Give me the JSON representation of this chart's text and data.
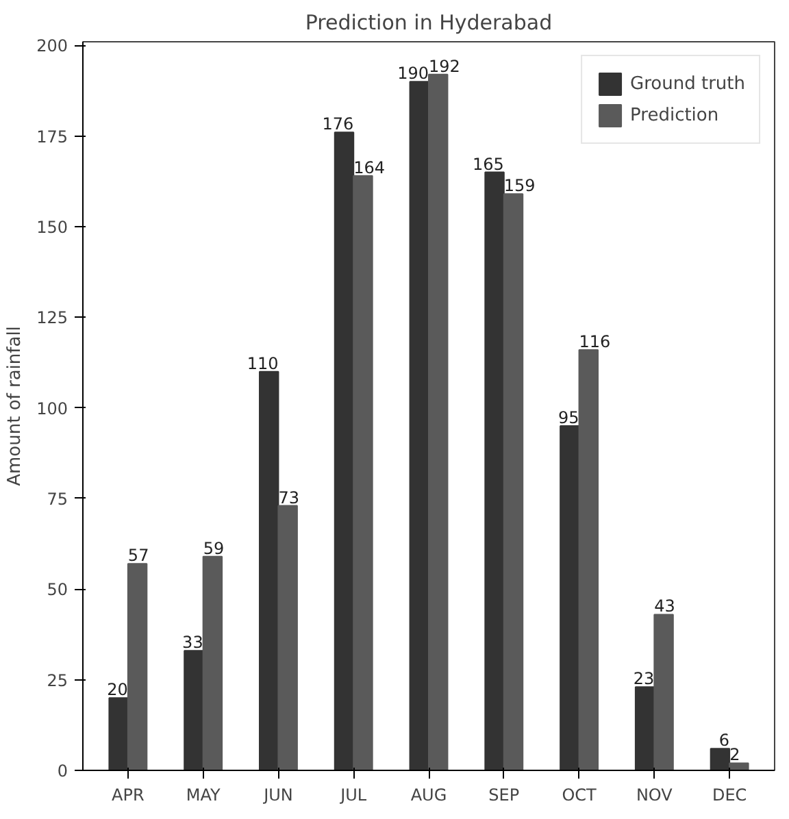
{
  "chart_data": {
    "type": "bar",
    "title": "Prediction in Hyderabad",
    "ylabel": "Amount of rainfall",
    "categories": [
      "APR",
      "MAY",
      "JUN",
      "JUL",
      "AUG",
      "SEP",
      "OCT",
      "NOV",
      "DEC"
    ],
    "series": [
      {
        "name": "Ground truth",
        "color": "#333333",
        "values": [
          20,
          33,
          110,
          176,
          190,
          165,
          95,
          23,
          6
        ]
      },
      {
        "name": "Prediction",
        "color": "#5a5a5a",
        "values": [
          57,
          59,
          73,
          164,
          192,
          159,
          116,
          43,
          2
        ]
      }
    ],
    "ylim": [
      0,
      201
    ],
    "yticks": [
      0,
      25,
      50,
      75,
      100,
      125,
      150,
      175,
      200
    ],
    "grid": false,
    "legend": "top right",
    "data_labels": true
  }
}
